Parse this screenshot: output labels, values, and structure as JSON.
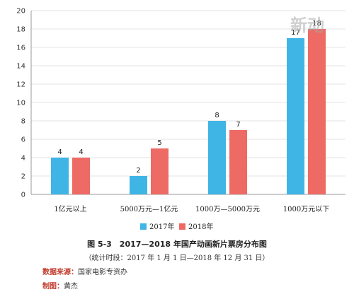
{
  "chart_data": {
    "type": "bar",
    "categories": [
      "1亿元以上",
      "5000万元—1亿元",
      "1000万—5000万元",
      "1000万元以下"
    ],
    "series": [
      {
        "name": "2017年",
        "values": [
          4,
          2,
          8,
          17
        ],
        "color": "#3fb5e6"
      },
      {
        "name": "2018年",
        "values": [
          4,
          5,
          7,
          18
        ],
        "color": "#ee6a64"
      }
    ],
    "yticks": [
      0,
      2,
      4,
      6,
      8,
      10,
      12,
      14,
      16,
      18,
      20
    ],
    "ylim": [
      0,
      20
    ],
    "grid": true,
    "legend_position": "bottom-center",
    "title": "图 5-3　2017—2018 年国产动画新片票房分布图",
    "subtitle": "（统计时段：2017 年 1 月 1 日—2018 年 12 月 31 日）"
  },
  "source_label": "数据来源：",
  "source_value": "国家电影专资办",
  "maker_label": "制图：",
  "maker_value": "黄杰",
  "watermark_text": "新动"
}
